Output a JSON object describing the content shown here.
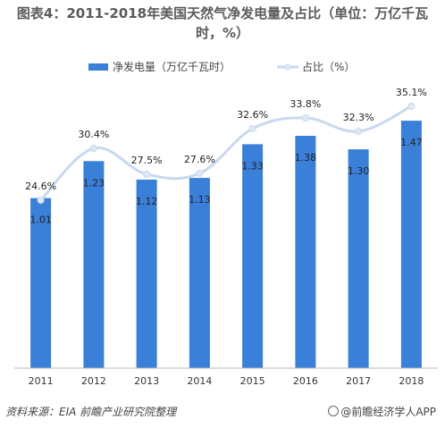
{
  "title": "图表4：2011-2018年美国天然气净发电量及占比（单位：万亿千瓦时，%）",
  "source": "资料来源：EIA  前瞻产业研究院整理",
  "brand": "@前瞻经济学人APP",
  "colors": {
    "bar": "#3a7fd8",
    "line": "#c9d9ee",
    "marker": "#dfe9f6",
    "axis": "#bbbbbb"
  },
  "chart_data": {
    "type": "bar",
    "categories": [
      "2011",
      "2012",
      "2013",
      "2014",
      "2015",
      "2016",
      "2017",
      "2018"
    ],
    "series": [
      {
        "name": "净发电量（万亿千瓦时）",
        "kind": "bar",
        "values": [
          1.01,
          1.23,
          1.12,
          1.13,
          1.33,
          1.38,
          1.3,
          1.47
        ],
        "labels": [
          "1.01",
          "1.23",
          "1.12",
          "1.13",
          "1.33",
          "1.38",
          "1.30",
          "1.47"
        ]
      },
      {
        "name": "占比（%）",
        "kind": "line",
        "values": [
          24.6,
          30.4,
          27.5,
          27.6,
          32.6,
          33.8,
          32.3,
          35.1
        ],
        "labels": [
          "24.6%",
          "30.4%",
          "27.5%",
          "27.6%",
          "32.6%",
          "33.8%",
          "32.3%",
          "35.1%"
        ]
      }
    ],
    "bar_ylim": [
      0,
      1.55
    ],
    "line_ylim": [
      0,
      38
    ],
    "legend_position": "top",
    "grid": false,
    "title": "图表4：2011-2018年美国天然气净发电量及占比（单位：万亿千瓦时，%）"
  }
}
